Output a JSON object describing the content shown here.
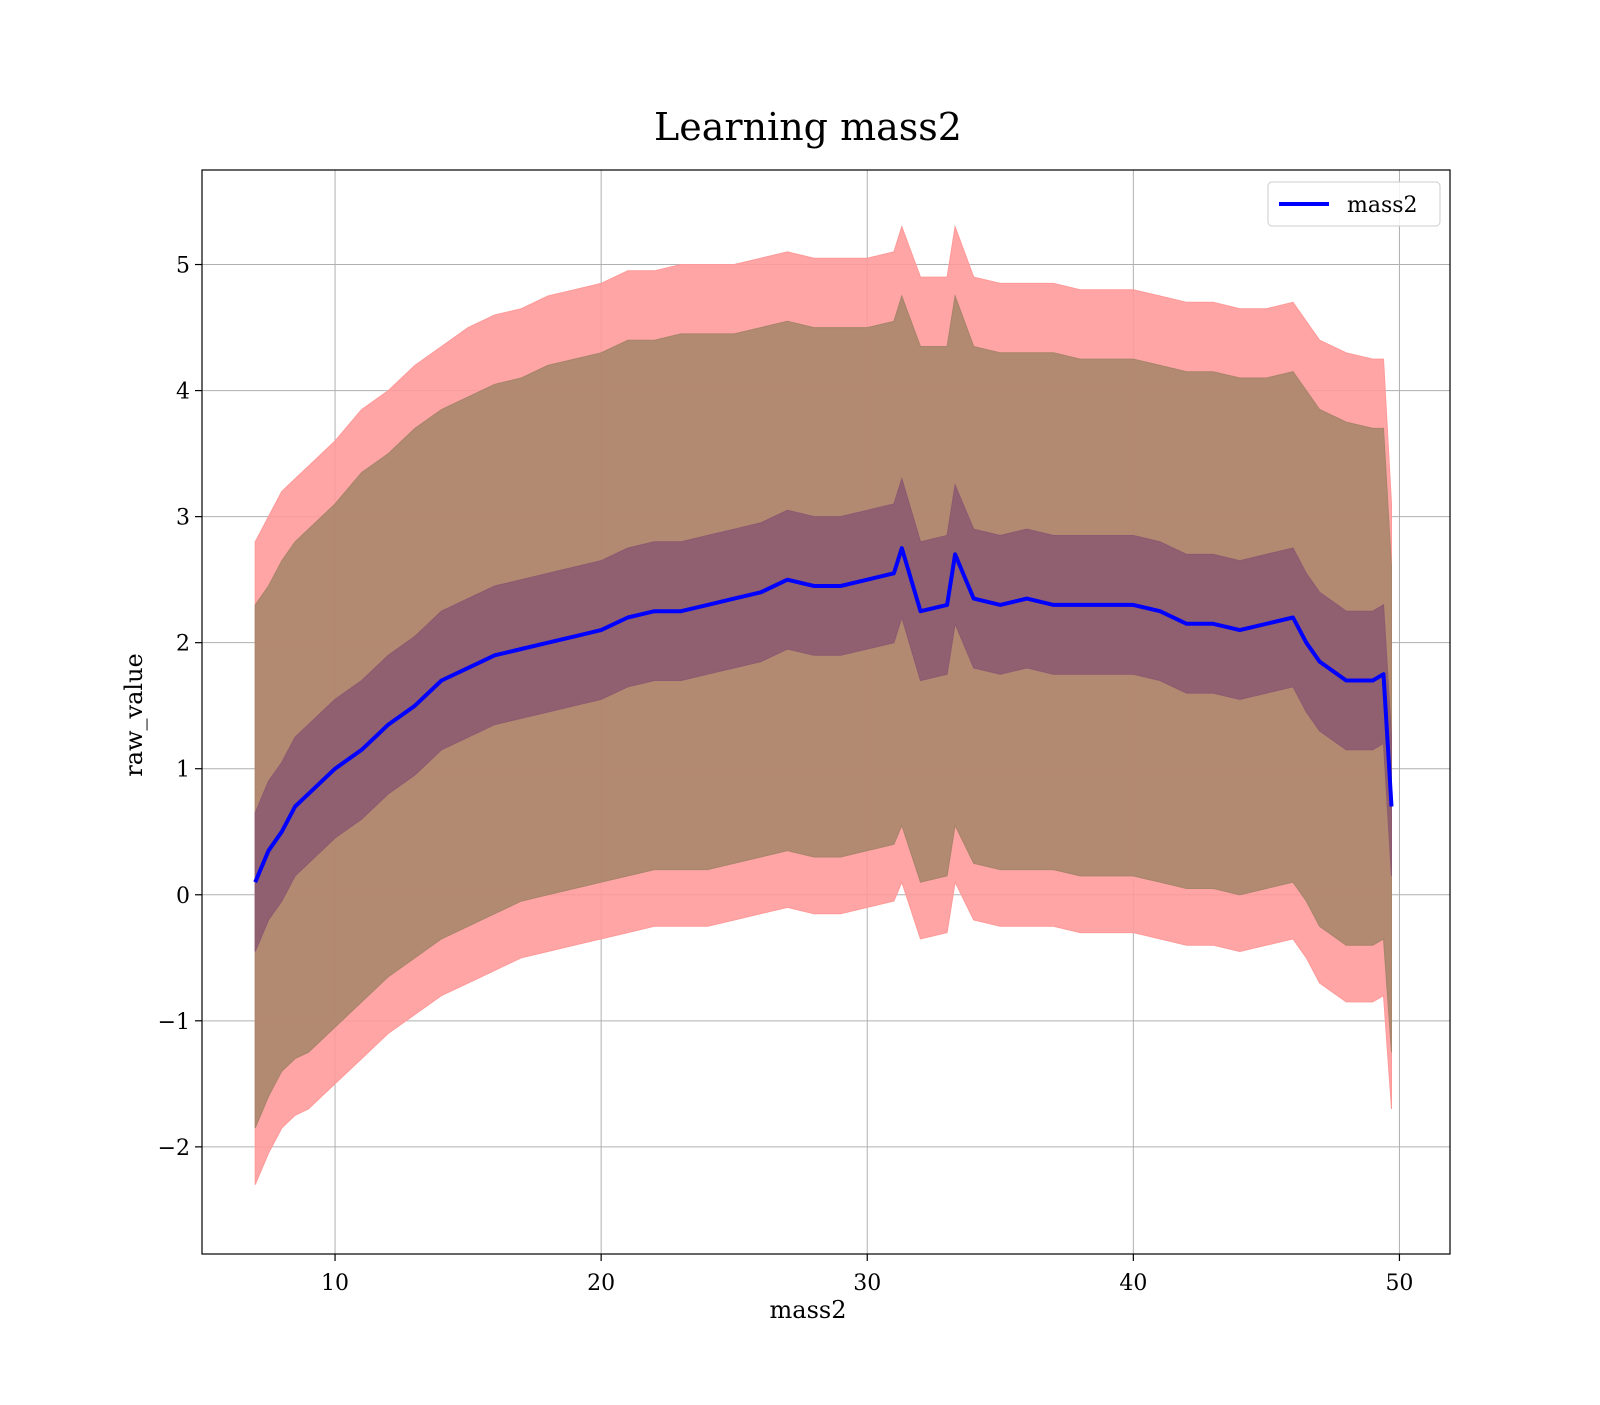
{
  "chart_data": {
    "type": "line",
    "title": "Learning mass2",
    "xlabel": "mass2",
    "ylabel": "raw_value",
    "xlim": [
      5,
      51.9
    ],
    "ylim": [
      -2.85,
      5.75
    ],
    "x_ticks": [
      10,
      20,
      30,
      40,
      50
    ],
    "x_tick_labels": [
      "10",
      "20",
      "30",
      "40",
      "50"
    ],
    "y_ticks": [
      -2,
      -1,
      0,
      1,
      2,
      3,
      4,
      5
    ],
    "y_tick_labels": [
      "−2",
      "−1",
      "0",
      "1",
      "2",
      "3",
      "4",
      "5"
    ],
    "grid": true,
    "legend": {
      "position": "top-right",
      "entries": [
        "mass2"
      ]
    },
    "series": [
      {
        "name": "mass2",
        "color": "#0000ff",
        "x": [
          7.0,
          7.5,
          8.0,
          8.5,
          9.0,
          10.0,
          11.0,
          12.0,
          13.0,
          14.0,
          15.0,
          16.0,
          17.0,
          18.0,
          19.0,
          20.0,
          21.0,
          22.0,
          23.0,
          24.0,
          25.0,
          26.0,
          27.0,
          28.0,
          29.0,
          30.0,
          31.0,
          31.3,
          32.0,
          33.0,
          33.3,
          34.0,
          35.0,
          36.0,
          37.0,
          38.0,
          39.0,
          40.0,
          41.0,
          42.0,
          43.0,
          44.0,
          45.0,
          46.0,
          46.5,
          47.0,
          48.0,
          49.0,
          49.4,
          49.7
        ],
        "y": [
          0.1,
          0.35,
          0.5,
          0.7,
          0.8,
          1.0,
          1.15,
          1.35,
          1.5,
          1.7,
          1.8,
          1.9,
          1.95,
          2.0,
          2.05,
          2.1,
          2.2,
          2.25,
          2.25,
          2.3,
          2.35,
          2.4,
          2.5,
          2.45,
          2.45,
          2.5,
          2.55,
          2.75,
          2.25,
          2.3,
          2.7,
          2.35,
          2.3,
          2.35,
          2.3,
          2.3,
          2.3,
          2.3,
          2.25,
          2.15,
          2.15,
          2.1,
          2.15,
          2.2,
          2.0,
          1.85,
          1.7,
          1.7,
          1.75,
          0.7
        ]
      }
    ],
    "bands": [
      {
        "label": "outer",
        "color": "#ff9999",
        "x": [
          7.0,
          7.5,
          8.0,
          8.5,
          9.0,
          10.0,
          11.0,
          12.0,
          13.0,
          14.0,
          15.0,
          16.0,
          17.0,
          18.0,
          19.0,
          20.0,
          21.0,
          22.0,
          23.0,
          24.0,
          25.0,
          26.0,
          27.0,
          28.0,
          29.0,
          30.0,
          31.0,
          31.3,
          32.0,
          33.0,
          33.3,
          34.0,
          35.0,
          36.0,
          37.0,
          38.0,
          39.0,
          40.0,
          41.0,
          42.0,
          43.0,
          44.0,
          45.0,
          46.0,
          46.5,
          47.0,
          48.0,
          49.0,
          49.4,
          49.7
        ],
        "upper": [
          2.8,
          3.0,
          3.2,
          3.3,
          3.4,
          3.6,
          3.85,
          4.0,
          4.2,
          4.35,
          4.5,
          4.6,
          4.65,
          4.75,
          4.8,
          4.85,
          4.95,
          4.95,
          5.0,
          5.0,
          5.0,
          5.05,
          5.1,
          5.05,
          5.05,
          5.05,
          5.1,
          5.3,
          4.9,
          4.9,
          5.3,
          4.9,
          4.85,
          4.85,
          4.85,
          4.8,
          4.8,
          4.8,
          4.75,
          4.7,
          4.7,
          4.65,
          4.65,
          4.7,
          4.55,
          4.4,
          4.3,
          4.25,
          4.25,
          3.1
        ],
        "lower": [
          -2.3,
          -2.05,
          -1.85,
          -1.75,
          -1.7,
          -1.5,
          -1.3,
          -1.1,
          -0.95,
          -0.8,
          -0.7,
          -0.6,
          -0.5,
          -0.45,
          -0.4,
          -0.35,
          -0.3,
          -0.25,
          -0.25,
          -0.25,
          -0.2,
          -0.15,
          -0.1,
          -0.15,
          -0.15,
          -0.1,
          -0.05,
          0.1,
          -0.35,
          -0.3,
          0.1,
          -0.2,
          -0.25,
          -0.25,
          -0.25,
          -0.3,
          -0.3,
          -0.3,
          -0.35,
          -0.4,
          -0.4,
          -0.45,
          -0.4,
          -0.35,
          -0.5,
          -0.7,
          -0.85,
          -0.85,
          -0.8,
          -1.7
        ]
      },
      {
        "label": "middle",
        "color": "#a7856a",
        "x": [
          7.0,
          7.5,
          8.0,
          8.5,
          9.0,
          10.0,
          11.0,
          12.0,
          13.0,
          14.0,
          15.0,
          16.0,
          17.0,
          18.0,
          19.0,
          20.0,
          21.0,
          22.0,
          23.0,
          24.0,
          25.0,
          26.0,
          27.0,
          28.0,
          29.0,
          30.0,
          31.0,
          31.3,
          32.0,
          33.0,
          33.3,
          34.0,
          35.0,
          36.0,
          37.0,
          38.0,
          39.0,
          40.0,
          41.0,
          42.0,
          43.0,
          44.0,
          45.0,
          46.0,
          46.5,
          47.0,
          48.0,
          49.0,
          49.4,
          49.7
        ],
        "upper": [
          2.3,
          2.45,
          2.65,
          2.8,
          2.9,
          3.1,
          3.35,
          3.5,
          3.7,
          3.85,
          3.95,
          4.05,
          4.1,
          4.2,
          4.25,
          4.3,
          4.4,
          4.4,
          4.45,
          4.45,
          4.45,
          4.5,
          4.55,
          4.5,
          4.5,
          4.5,
          4.55,
          4.75,
          4.35,
          4.35,
          4.75,
          4.35,
          4.3,
          4.3,
          4.3,
          4.25,
          4.25,
          4.25,
          4.2,
          4.15,
          4.15,
          4.1,
          4.1,
          4.15,
          4.0,
          3.85,
          3.75,
          3.7,
          3.7,
          2.6
        ],
        "lower": [
          -1.85,
          -1.6,
          -1.4,
          -1.3,
          -1.25,
          -1.05,
          -0.85,
          -0.65,
          -0.5,
          -0.35,
          -0.25,
          -0.15,
          -0.05,
          0.0,
          0.05,
          0.1,
          0.15,
          0.2,
          0.2,
          0.2,
          0.25,
          0.3,
          0.35,
          0.3,
          0.3,
          0.35,
          0.4,
          0.55,
          0.1,
          0.15,
          0.55,
          0.25,
          0.2,
          0.2,
          0.2,
          0.15,
          0.15,
          0.15,
          0.1,
          0.05,
          0.05,
          0.0,
          0.05,
          0.1,
          -0.05,
          -0.25,
          -0.4,
          -0.4,
          -0.35,
          -1.25
        ]
      },
      {
        "label": "inner",
        "color": "#8b5a70",
        "x": [
          7.0,
          7.5,
          8.0,
          8.5,
          9.0,
          10.0,
          11.0,
          12.0,
          13.0,
          14.0,
          15.0,
          16.0,
          17.0,
          18.0,
          19.0,
          20.0,
          21.0,
          22.0,
          23.0,
          24.0,
          25.0,
          26.0,
          27.0,
          28.0,
          29.0,
          30.0,
          31.0,
          31.3,
          32.0,
          33.0,
          33.3,
          34.0,
          35.0,
          36.0,
          37.0,
          38.0,
          39.0,
          40.0,
          41.0,
          42.0,
          43.0,
          44.0,
          45.0,
          46.0,
          46.5,
          47.0,
          48.0,
          49.0,
          49.4,
          49.7
        ],
        "upper": [
          0.65,
          0.9,
          1.05,
          1.25,
          1.35,
          1.55,
          1.7,
          1.9,
          2.05,
          2.25,
          2.35,
          2.45,
          2.5,
          2.55,
          2.6,
          2.65,
          2.75,
          2.8,
          2.8,
          2.85,
          2.9,
          2.95,
          3.05,
          3.0,
          3.0,
          3.05,
          3.1,
          3.3,
          2.8,
          2.85,
          3.25,
          2.9,
          2.85,
          2.9,
          2.85,
          2.85,
          2.85,
          2.85,
          2.8,
          2.7,
          2.7,
          2.65,
          2.7,
          2.75,
          2.55,
          2.4,
          2.25,
          2.25,
          2.3,
          1.25
        ],
        "lower": [
          -0.45,
          -0.2,
          -0.05,
          0.15,
          0.25,
          0.45,
          0.6,
          0.8,
          0.95,
          1.15,
          1.25,
          1.35,
          1.4,
          1.45,
          1.5,
          1.55,
          1.65,
          1.7,
          1.7,
          1.75,
          1.8,
          1.85,
          1.95,
          1.9,
          1.9,
          1.95,
          2.0,
          2.2,
          1.7,
          1.75,
          2.15,
          1.8,
          1.75,
          1.8,
          1.75,
          1.75,
          1.75,
          1.75,
          1.7,
          1.6,
          1.6,
          1.55,
          1.6,
          1.65,
          1.45,
          1.3,
          1.15,
          1.15,
          1.2,
          0.15
        ]
      }
    ]
  }
}
